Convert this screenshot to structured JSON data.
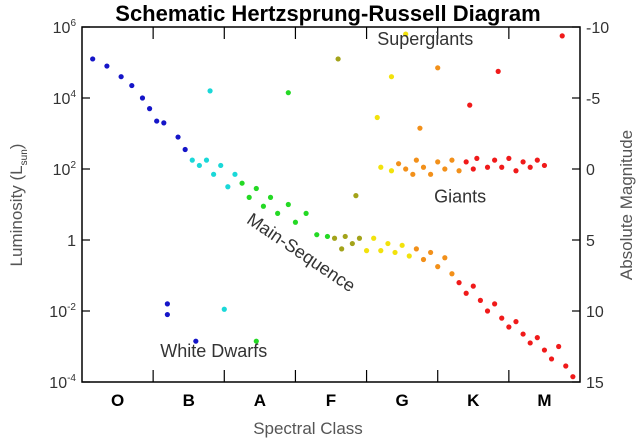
{
  "chart_data": {
    "type": "scatter",
    "title": "Schematic Hertzsprung-Russell Diagram",
    "xlabel": "Spectral Class",
    "ylabel_left": "Luminosity (L",
    "ylabel_left_sub": "sun",
    "ylabel_left_close": ")",
    "ylabel_right": "Absolute Magnitude",
    "x_categories": [
      "O",
      "B",
      "A",
      "F",
      "G",
      "K",
      "M"
    ],
    "x_range": [
      0,
      7
    ],
    "y_log_range": [
      -4,
      6
    ],
    "y_ticks_left": [
      {
        "exp": 6,
        "label": "10",
        "sup": "6"
      },
      {
        "exp": 4,
        "label": "10",
        "sup": "4"
      },
      {
        "exp": 2,
        "label": "10",
        "sup": "2"
      },
      {
        "exp": 0,
        "label": "1",
        "sup": ""
      },
      {
        "exp": -2,
        "label": "10",
        "sup": "-2"
      },
      {
        "exp": -4,
        "label": "10",
        "sup": "-4"
      }
    ],
    "y_ticks_right": [
      {
        "exp": 6,
        "label": "-10"
      },
      {
        "exp": 4,
        "label": "-5"
      },
      {
        "exp": 2,
        "label": "0"
      },
      {
        "exp": 0,
        "label": "5"
      },
      {
        "exp": -2,
        "label": "10"
      },
      {
        "exp": -4,
        "label": "15"
      }
    ],
    "annotations": [
      {
        "text": "Supergiants",
        "x": 4.15,
        "logL": 5.5,
        "rotate": 0
      },
      {
        "text": "Giants",
        "x": 4.95,
        "logL": 1.05,
        "rotate": 0
      },
      {
        "text": "White Dwarfs",
        "x": 1.1,
        "logL": -3.3,
        "rotate": 0
      },
      {
        "text": "Main-Sequence",
        "x": 2.3,
        "logL": 0.5,
        "rotate": 34
      }
    ],
    "colors": {
      "O": "#1515c8",
      "A": "#1ad8d8",
      "F_green": "#24d924",
      "olive": "#a3a31a",
      "yellow": "#f2e20c",
      "orange": "#f2901a",
      "red": "#f01a1a"
    },
    "points": [
      {
        "x": 0.15,
        "logL": 5.1,
        "color": "#1515c8"
      },
      {
        "x": 0.35,
        "logL": 4.9,
        "color": "#1515c8"
      },
      {
        "x": 0.55,
        "logL": 4.6,
        "color": "#1515c8"
      },
      {
        "x": 0.7,
        "logL": 4.35,
        "color": "#1515c8"
      },
      {
        "x": 0.85,
        "logL": 4.0,
        "color": "#1515c8"
      },
      {
        "x": 0.95,
        "logL": 3.7,
        "color": "#1515c8"
      },
      {
        "x": 1.05,
        "logL": 3.35,
        "color": "#1515c8"
      },
      {
        "x": 1.15,
        "logL": 3.3,
        "color": "#1515c8"
      },
      {
        "x": 1.35,
        "logL": 2.9,
        "color": "#1515c8"
      },
      {
        "x": 1.45,
        "logL": 2.55,
        "color": "#1515c8"
      },
      {
        "x": 1.55,
        "logL": 2.25,
        "color": "#1ad8d8"
      },
      {
        "x": 1.65,
        "logL": 2.1,
        "color": "#1ad8d8"
      },
      {
        "x": 1.75,
        "logL": 2.25,
        "color": "#1ad8d8"
      },
      {
        "x": 1.85,
        "logL": 1.85,
        "color": "#1ad8d8"
      },
      {
        "x": 1.95,
        "logL": 2.1,
        "color": "#1ad8d8"
      },
      {
        "x": 2.05,
        "logL": 1.5,
        "color": "#1ad8d8"
      },
      {
        "x": 2.15,
        "logL": 1.85,
        "color": "#1ad8d8"
      },
      {
        "x": 2.25,
        "logL": 1.6,
        "color": "#24d924"
      },
      {
        "x": 2.35,
        "logL": 1.2,
        "color": "#24d924"
      },
      {
        "x": 2.45,
        "logL": 1.45,
        "color": "#24d924"
      },
      {
        "x": 2.55,
        "logL": 0.95,
        "color": "#24d924"
      },
      {
        "x": 2.65,
        "logL": 1.2,
        "color": "#24d924"
      },
      {
        "x": 2.75,
        "logL": 0.75,
        "color": "#24d924"
      },
      {
        "x": 2.9,
        "logL": 1.0,
        "color": "#24d924"
      },
      {
        "x": 3.0,
        "logL": 0.5,
        "color": "#24d924"
      },
      {
        "x": 3.15,
        "logL": 0.75,
        "color": "#24d924"
      },
      {
        "x": 3.3,
        "logL": 0.15,
        "color": "#24d924"
      },
      {
        "x": 3.45,
        "logL": 0.1,
        "color": "#24d924"
      },
      {
        "x": 3.55,
        "logL": 0.05,
        "color": "#a3a31a"
      },
      {
        "x": 3.65,
        "logL": -0.25,
        "color": "#a3a31a"
      },
      {
        "x": 3.7,
        "logL": 0.1,
        "color": "#a3a31a"
      },
      {
        "x": 3.8,
        "logL": -0.1,
        "color": "#a3a31a"
      },
      {
        "x": 3.9,
        "logL": 0.05,
        "color": "#a3a31a"
      },
      {
        "x": 4.0,
        "logL": -0.3,
        "color": "#f2e20c"
      },
      {
        "x": 4.1,
        "logL": 0.05,
        "color": "#f2e20c"
      },
      {
        "x": 4.2,
        "logL": -0.3,
        "color": "#f2e20c"
      },
      {
        "x": 4.3,
        "logL": -0.1,
        "color": "#f2e20c"
      },
      {
        "x": 4.4,
        "logL": -0.35,
        "color": "#f2e20c"
      },
      {
        "x": 4.5,
        "logL": -0.15,
        "color": "#f2e20c"
      },
      {
        "x": 4.6,
        "logL": -0.45,
        "color": "#f2e20c"
      },
      {
        "x": 4.7,
        "logL": -0.25,
        "color": "#f2901a"
      },
      {
        "x": 4.8,
        "logL": -0.55,
        "color": "#f2901a"
      },
      {
        "x": 4.9,
        "logL": -0.35,
        "color": "#f2901a"
      },
      {
        "x": 5.0,
        "logL": -0.75,
        "color": "#f2901a"
      },
      {
        "x": 5.1,
        "logL": -0.5,
        "color": "#f2901a"
      },
      {
        "x": 5.2,
        "logL": -0.95,
        "color": "#f2901a"
      },
      {
        "x": 5.3,
        "logL": -1.2,
        "color": "#f01a1a"
      },
      {
        "x": 5.4,
        "logL": -1.5,
        "color": "#f01a1a"
      },
      {
        "x": 5.5,
        "logL": -1.3,
        "color": "#f01a1a"
      },
      {
        "x": 5.6,
        "logL": -1.7,
        "color": "#f01a1a"
      },
      {
        "x": 5.7,
        "logL": -2.0,
        "color": "#f01a1a"
      },
      {
        "x": 5.8,
        "logL": -1.8,
        "color": "#f01a1a"
      },
      {
        "x": 5.9,
        "logL": -2.2,
        "color": "#f01a1a"
      },
      {
        "x": 6.0,
        "logL": -2.45,
        "color": "#f01a1a"
      },
      {
        "x": 6.1,
        "logL": -2.3,
        "color": "#f01a1a"
      },
      {
        "x": 6.2,
        "logL": -2.65,
        "color": "#f01a1a"
      },
      {
        "x": 6.3,
        "logL": -2.9,
        "color": "#f01a1a"
      },
      {
        "x": 6.4,
        "logL": -2.75,
        "color": "#f01a1a"
      },
      {
        "x": 6.5,
        "logL": -3.1,
        "color": "#f01a1a"
      },
      {
        "x": 6.6,
        "logL": -3.35,
        "color": "#f01a1a"
      },
      {
        "x": 6.7,
        "logL": -3.0,
        "color": "#f01a1a"
      },
      {
        "x": 6.8,
        "logL": -3.55,
        "color": "#f01a1a"
      },
      {
        "x": 6.9,
        "logL": -3.85,
        "color": "#f01a1a"
      },
      {
        "x": 4.2,
        "logL": 2.05,
        "color": "#f2e20c"
      },
      {
        "x": 4.35,
        "logL": 1.95,
        "color": "#f2e20c"
      },
      {
        "x": 4.45,
        "logL": 2.15,
        "color": "#f2901a"
      },
      {
        "x": 4.55,
        "logL": 2.0,
        "color": "#f2901a"
      },
      {
        "x": 4.65,
        "logL": 1.85,
        "color": "#f2901a"
      },
      {
        "x": 4.7,
        "logL": 2.25,
        "color": "#f2901a"
      },
      {
        "x": 4.8,
        "logL": 2.05,
        "color": "#f2901a"
      },
      {
        "x": 4.9,
        "logL": 1.85,
        "color": "#f2901a"
      },
      {
        "x": 5.0,
        "logL": 2.2,
        "color": "#f2901a"
      },
      {
        "x": 5.1,
        "logL": 2.0,
        "color": "#f2901a"
      },
      {
        "x": 5.2,
        "logL": 2.25,
        "color": "#f2901a"
      },
      {
        "x": 5.3,
        "logL": 1.95,
        "color": "#f2901a"
      },
      {
        "x": 5.4,
        "logL": 2.2,
        "color": "#f01a1a"
      },
      {
        "x": 5.5,
        "logL": 2.0,
        "color": "#f01a1a"
      },
      {
        "x": 5.55,
        "logL": 2.3,
        "color": "#f01a1a"
      },
      {
        "x": 5.7,
        "logL": 2.05,
        "color": "#f01a1a"
      },
      {
        "x": 5.8,
        "logL": 2.25,
        "color": "#f01a1a"
      },
      {
        "x": 5.9,
        "logL": 2.05,
        "color": "#f01a1a"
      },
      {
        "x": 6.0,
        "logL": 2.3,
        "color": "#f01a1a"
      },
      {
        "x": 6.1,
        "logL": 1.95,
        "color": "#f01a1a"
      },
      {
        "x": 6.2,
        "logL": 2.2,
        "color": "#f01a1a"
      },
      {
        "x": 6.3,
        "logL": 2.05,
        "color": "#f01a1a"
      },
      {
        "x": 6.4,
        "logL": 2.25,
        "color": "#f01a1a"
      },
      {
        "x": 6.5,
        "logL": 2.1,
        "color": "#f01a1a"
      },
      {
        "x": 1.8,
        "logL": 4.2,
        "color": "#1ad8d8"
      },
      {
        "x": 2.9,
        "logL": 4.15,
        "color": "#24d924"
      },
      {
        "x": 3.6,
        "logL": 5.1,
        "color": "#a3a31a"
      },
      {
        "x": 3.85,
        "logL": 1.25,
        "color": "#a3a31a"
      },
      {
        "x": 4.15,
        "logL": 3.45,
        "color": "#f2e20c"
      },
      {
        "x": 4.35,
        "logL": 4.6,
        "color": "#f2e20c"
      },
      {
        "x": 4.55,
        "logL": 5.8,
        "color": "#f2e20c"
      },
      {
        "x": 4.75,
        "logL": 3.15,
        "color": "#f2901a"
      },
      {
        "x": 5.0,
        "logL": 4.85,
        "color": "#f2901a"
      },
      {
        "x": 5.45,
        "logL": 3.8,
        "color": "#f01a1a"
      },
      {
        "x": 5.85,
        "logL": 4.75,
        "color": "#f01a1a"
      },
      {
        "x": 6.75,
        "logL": 5.75,
        "color": "#f01a1a"
      },
      {
        "x": 1.2,
        "logL": -1.8,
        "color": "#1515c8"
      },
      {
        "x": 1.2,
        "logL": -2.1,
        "color": "#1515c8"
      },
      {
        "x": 1.6,
        "logL": -2.85,
        "color": "#1515c8"
      },
      {
        "x": 2.0,
        "logL": -1.95,
        "color": "#1ad8d8"
      },
      {
        "x": 2.45,
        "logL": -2.85,
        "color": "#24d924"
      }
    ]
  }
}
